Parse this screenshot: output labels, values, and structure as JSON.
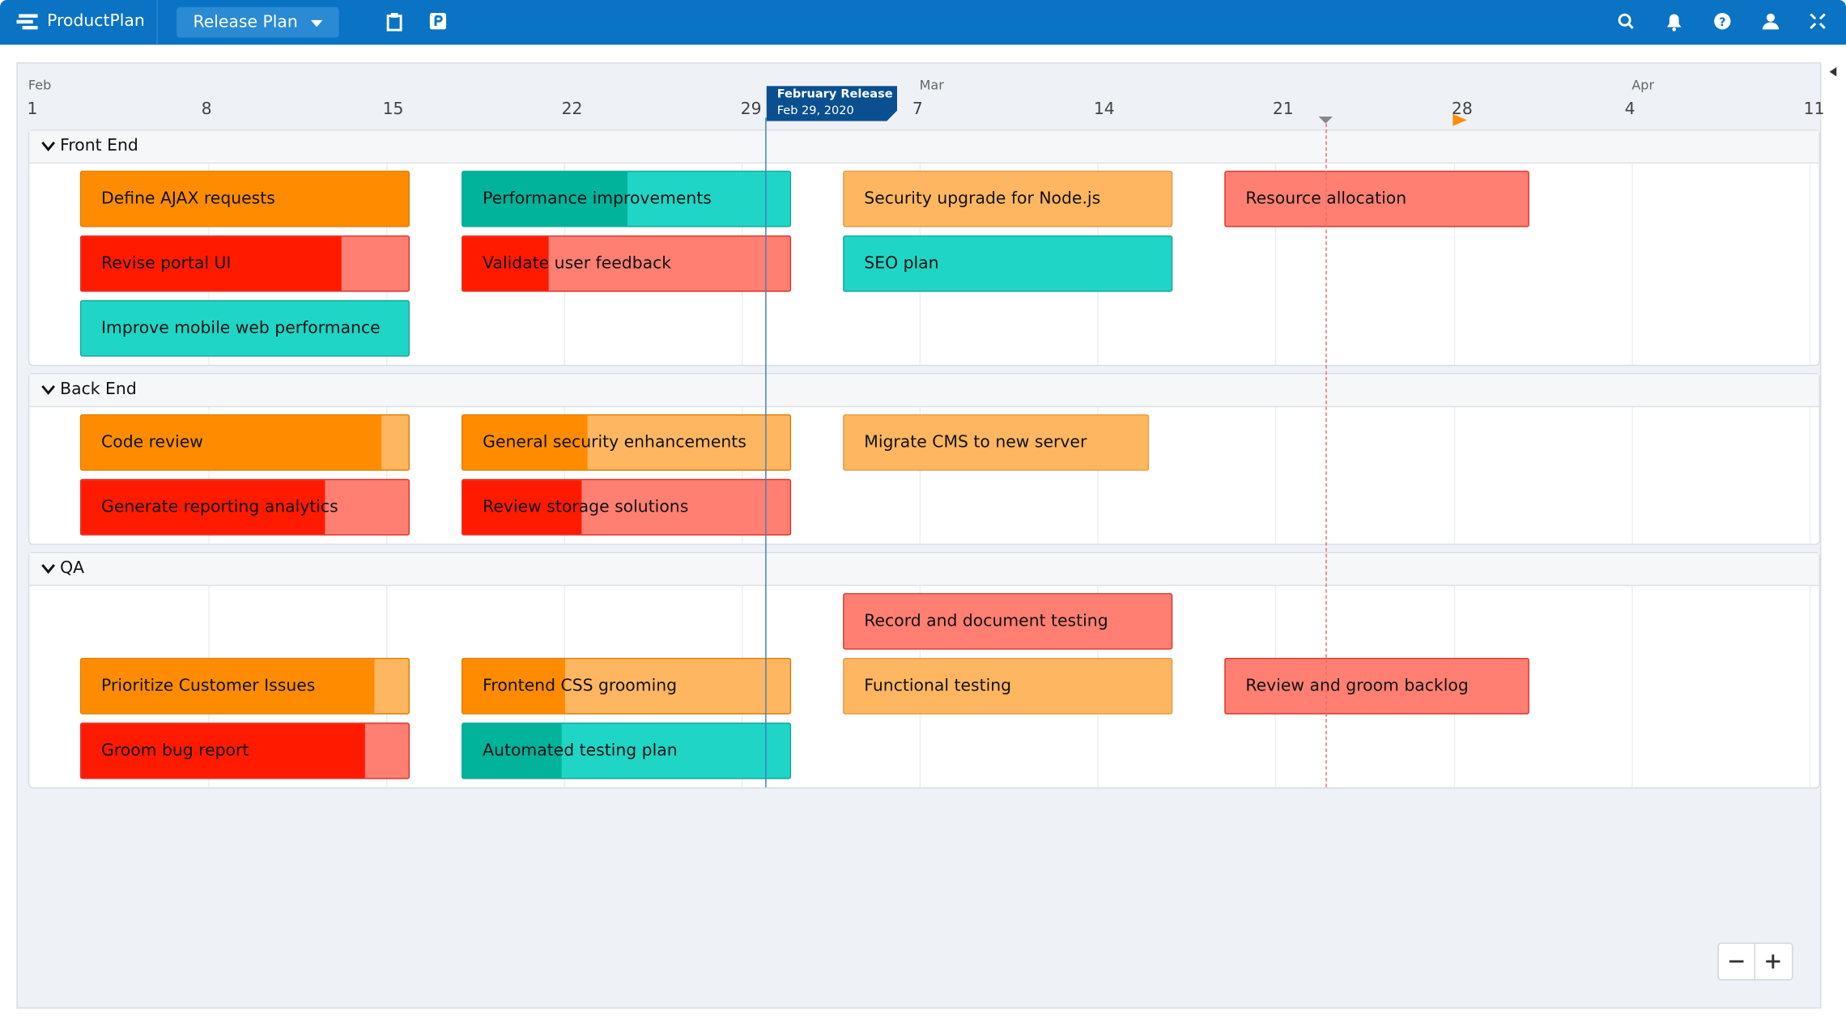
{
  "header": {
    "brand": "ProductPlan",
    "plan": "Release Plan"
  },
  "timeline": {
    "months": [
      "Feb",
      "Mar",
      "Apr"
    ],
    "days": [
      "1",
      "8",
      "15",
      "22",
      "29",
      "7",
      "14",
      "21",
      "28",
      "4",
      "11"
    ]
  },
  "milestone": {
    "title": "February Release",
    "date": "Feb 29, 2020"
  },
  "lanes": [
    {
      "name": "Front End",
      "bars": [
        "Define AJAX requests",
        "Performance improvements",
        "Security upgrade for Node.js",
        "Resource allocation",
        "Revise portal UI",
        "Validate user feedback",
        "SEO plan",
        "Improve mobile web performance"
      ]
    },
    {
      "name": "Back End",
      "bars": [
        "Code review",
        "General security enhancements",
        "Migrate CMS to new server",
        "Generate reporting analytics",
        "Review storage solutions"
      ]
    },
    {
      "name": "QA",
      "bars": [
        "Record and document testing",
        "Prioritize Customer Issues",
        "Frontend CSS grooming",
        "Functional testing",
        "Review and groom backlog",
        "Groom bug report",
        "Automated testing plan"
      ]
    }
  ]
}
